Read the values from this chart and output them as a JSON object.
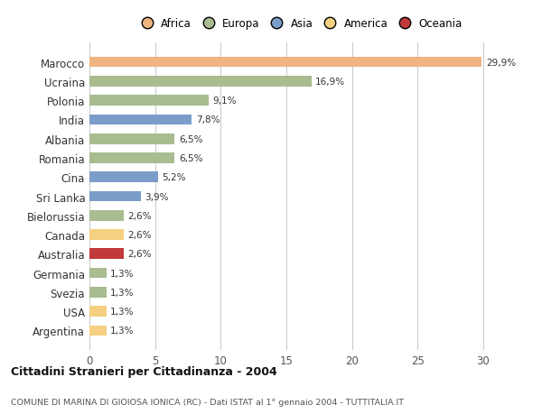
{
  "countries": [
    "Marocco",
    "Ucraina",
    "Polonia",
    "India",
    "Albania",
    "Romania",
    "Cina",
    "Sri Lanka",
    "Bielorussia",
    "Canada",
    "Australia",
    "Germania",
    "Svezia",
    "USA",
    "Argentina"
  ],
  "values": [
    29.9,
    16.9,
    9.1,
    7.8,
    6.5,
    6.5,
    5.2,
    3.9,
    2.6,
    2.6,
    2.6,
    1.3,
    1.3,
    1.3,
    1.3
  ],
  "labels": [
    "29,9%",
    "16,9%",
    "9,1%",
    "7,8%",
    "6,5%",
    "6,5%",
    "5,2%",
    "3,9%",
    "2,6%",
    "2,6%",
    "2,6%",
    "1,3%",
    "1,3%",
    "1,3%",
    "1,3%"
  ],
  "colors": [
    "#f0b482",
    "#a8bc8f",
    "#a8bc8f",
    "#7b9dc9",
    "#a8bc8f",
    "#a8bc8f",
    "#7b9dc9",
    "#7b9dc9",
    "#a8bc8f",
    "#f5d080",
    "#c0393b",
    "#a8bc8f",
    "#a8bc8f",
    "#f5d080",
    "#f5d080"
  ],
  "continents": [
    "Africa",
    "Europa",
    "Asia",
    "America",
    "Oceania"
  ],
  "legend_colors": [
    "#f0b482",
    "#a8bc8f",
    "#7b9dc9",
    "#f5d080",
    "#c0393b"
  ],
  "title": "Cittadini Stranieri per Cittadinanza - 2004",
  "subtitle": "COMUNE DI MARINA DI GIOIOSA IONICA (RC) - Dati ISTAT al 1° gennaio 2004 - TUTTITALIA.IT",
  "xlim": [
    0,
    32
  ],
  "xticks": [
    0,
    5,
    10,
    15,
    20,
    25,
    30
  ],
  "background_color": "#ffffff",
  "grid_color": "#cccccc"
}
